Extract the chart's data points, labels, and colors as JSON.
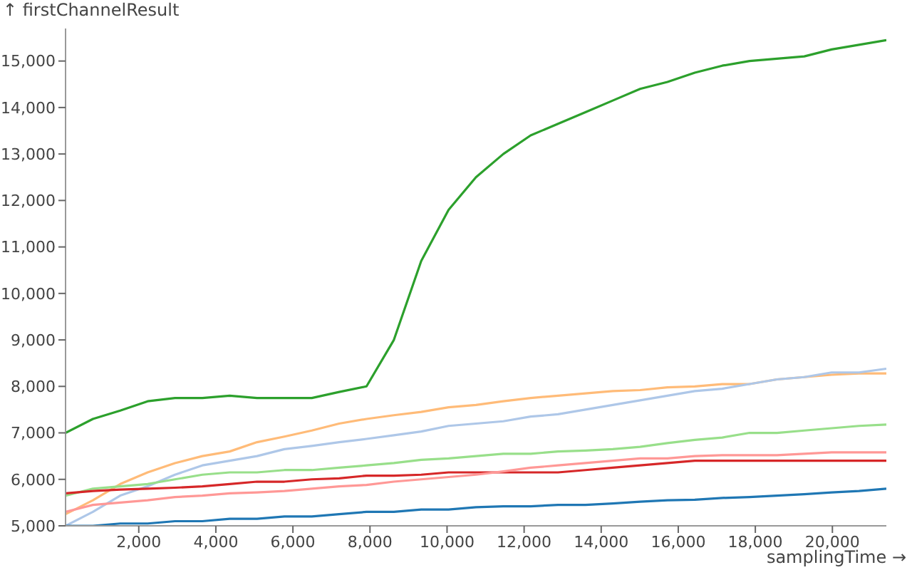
{
  "chart_data": {
    "type": "line",
    "xlabel": "samplingTime →",
    "ylabel": "↑ firstChannelResult",
    "x": [
      100,
      810,
      1520,
      2230,
      2940,
      3650,
      4360,
      5070,
      5780,
      6490,
      7200,
      7910,
      8620,
      9330,
      10040,
      10750,
      11460,
      12170,
      12880,
      13590,
      14300,
      15010,
      15720,
      16430,
      17140,
      17850,
      18560,
      19270,
      19980,
      20690,
      21400
    ],
    "series": [
      {
        "color": "#2ca02c",
        "values": [
          7000,
          7300,
          7480,
          7680,
          7750,
          7750,
          7800,
          7750,
          7750,
          7750,
          7880,
          8000,
          9000,
          10700,
          11800,
          12500,
          13000,
          13400,
          13650,
          13900,
          14150,
          14400,
          14550,
          14750,
          14900,
          15000,
          15050,
          15100,
          15250,
          15350,
          15450
        ]
      },
      {
        "color": "#ffbb78",
        "values": [
          5250,
          5550,
          5900,
          6150,
          6350,
          6500,
          6600,
          6800,
          6920,
          7050,
          7200,
          7300,
          7380,
          7450,
          7550,
          7600,
          7680,
          7750,
          7800,
          7850,
          7900,
          7920,
          7980,
          8000,
          8050,
          8050,
          8150,
          8200,
          8250,
          8280,
          8280
        ]
      },
      {
        "color": "#aec7e8",
        "values": [
          5000,
          5300,
          5650,
          5850,
          6100,
          6300,
          6400,
          6500,
          6650,
          6720,
          6800,
          6870,
          6950,
          7030,
          7150,
          7200,
          7250,
          7350,
          7400,
          7500,
          7600,
          7700,
          7800,
          7900,
          7950,
          8050,
          8150,
          8200,
          8300,
          8300,
          8380
        ]
      },
      {
        "color": "#98df8a",
        "values": [
          5650,
          5800,
          5850,
          5900,
          6000,
          6100,
          6150,
          6150,
          6200,
          6200,
          6250,
          6300,
          6350,
          6420,
          6450,
          6500,
          6550,
          6550,
          6600,
          6620,
          6650,
          6700,
          6780,
          6850,
          6900,
          7000,
          7000,
          7050,
          7100,
          7150,
          7180
        ]
      },
      {
        "color": "#d62728",
        "values": [
          5700,
          5750,
          5780,
          5800,
          5820,
          5850,
          5900,
          5950,
          5950,
          6000,
          6020,
          6080,
          6080,
          6100,
          6150,
          6150,
          6150,
          6150,
          6150,
          6200,
          6250,
          6300,
          6350,
          6400,
          6400,
          6400,
          6400,
          6400,
          6400,
          6400,
          6400
        ]
      },
      {
        "color": "#ff9896",
        "values": [
          5300,
          5450,
          5500,
          5550,
          5620,
          5650,
          5700,
          5720,
          5750,
          5800,
          5850,
          5880,
          5950,
          6000,
          6050,
          6100,
          6170,
          6250,
          6300,
          6350,
          6400,
          6450,
          6450,
          6500,
          6520,
          6520,
          6520,
          6550,
          6580,
          6580,
          6580
        ]
      },
      {
        "color": "#1f77b4",
        "values": [
          5000,
          5000,
          5050,
          5050,
          5100,
          5100,
          5150,
          5150,
          5200,
          5200,
          5250,
          5300,
          5300,
          5350,
          5350,
          5400,
          5420,
          5420,
          5450,
          5450,
          5480,
          5520,
          5550,
          5560,
          5600,
          5620,
          5650,
          5680,
          5720,
          5750,
          5800
        ]
      }
    ],
    "xlim": [
      100,
      21400
    ],
    "xticks": [
      {
        "value": 2000,
        "label": "2,000"
      },
      {
        "value": 4000,
        "label": "4,000"
      },
      {
        "value": 6000,
        "label": "6,000"
      },
      {
        "value": 8000,
        "label": "8,000"
      },
      {
        "value": 10000,
        "label": "10,000"
      },
      {
        "value": 12000,
        "label": "12,000"
      },
      {
        "value": 14000,
        "label": "14,000"
      },
      {
        "value": 16000,
        "label": "16,000"
      },
      {
        "value": 18000,
        "label": "18,000"
      },
      {
        "value": 20000,
        "label": "20,000"
      }
    ],
    "ylim": [
      5000,
      15700
    ],
    "yticks": [
      {
        "value": 5000,
        "label": "5,000"
      },
      {
        "value": 6000,
        "label": "6,000"
      },
      {
        "value": 7000,
        "label": "7,000"
      },
      {
        "value": 8000,
        "label": "8,000"
      },
      {
        "value": 9000,
        "label": "9,000"
      },
      {
        "value": 10000,
        "label": "10,000"
      },
      {
        "value": 11000,
        "label": "11,000"
      },
      {
        "value": 12000,
        "label": "12,000"
      },
      {
        "value": 13000,
        "label": "13,000"
      },
      {
        "value": 14000,
        "label": "14,000"
      },
      {
        "value": 15000,
        "label": "15,000"
      }
    ],
    "grid": false,
    "legend": false,
    "marker": "none",
    "line_style": "solid"
  }
}
